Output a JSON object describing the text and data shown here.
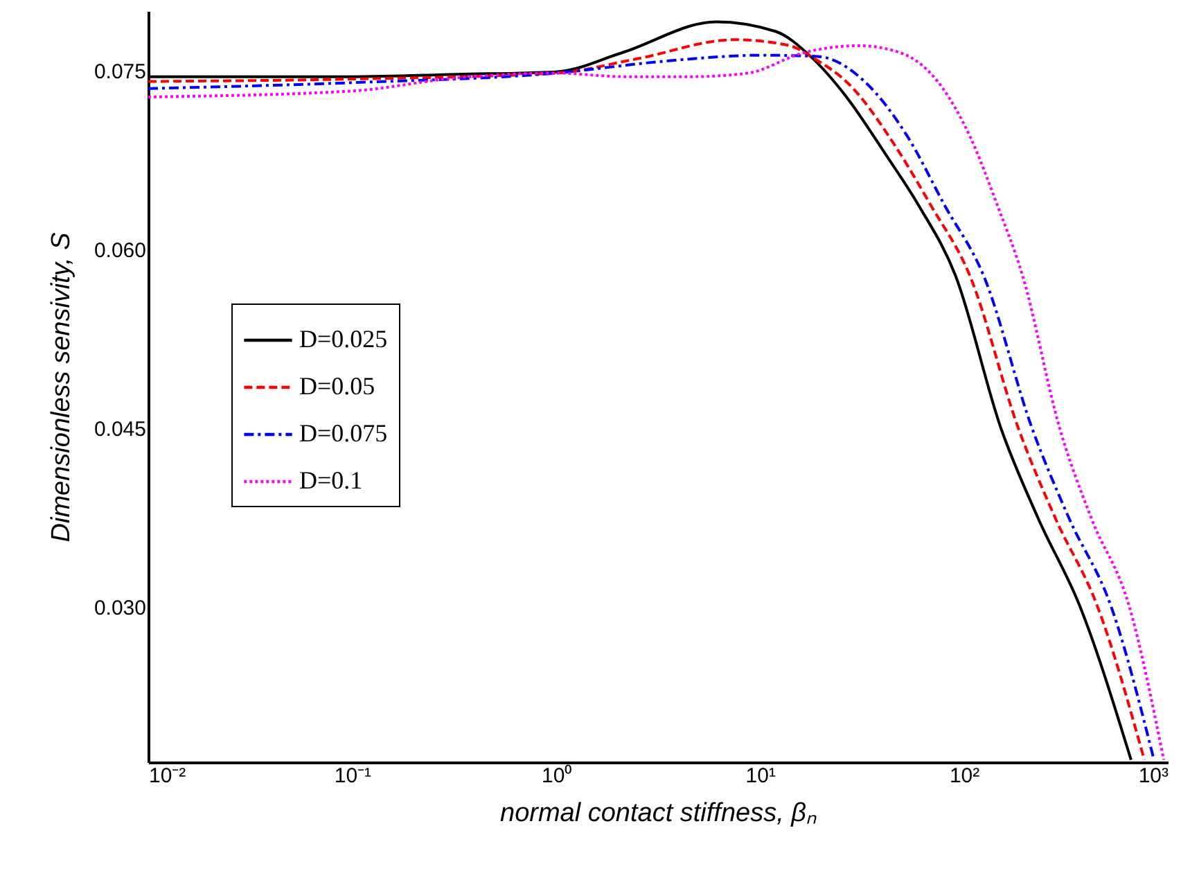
{
  "chart_data": {
    "type": "line",
    "xlabel": "normal contact stiffness, βₙ",
    "ylabel": "Dimensionless sensivity, S",
    "log": "x",
    "grid": false,
    "legend": "left",
    "marker": "none",
    "xlim": [
      0.01,
      1000
    ],
    "xticks": [
      {
        "value": 0.01,
        "label": "10⁻²"
      },
      {
        "value": 0.1,
        "label": "10⁻¹"
      },
      {
        "value": 1,
        "label": "10⁰"
      },
      {
        "value": 10,
        "label": "10¹"
      },
      {
        "value": 100,
        "label": "10²"
      },
      {
        "value": 1000,
        "label": "10³"
      }
    ],
    "ylim": [
      0.017,
      0.08
    ],
    "yticks": [
      {
        "value": 0.03,
        "label": "0.030"
      },
      0.045,
      {
        "value": 0.06,
        "label": "0.060"
      },
      0.075
    ],
    "series": [
      {
        "name": "D=0.025",
        "color": "#000000",
        "line_style": "solid",
        "x": [
          0.01,
          0.1,
          0.327,
          1.0,
          2.1,
          6.1,
          11.9,
          17.7,
          26,
          42,
          60,
          91,
          152,
          232,
          370,
          660
        ],
        "values": [
          0.0745,
          0.0745,
          0.0747,
          0.0749,
          0.0765,
          0.0791,
          0.0783,
          0.0762,
          0.073,
          0.0678,
          0.0637,
          0.0578,
          0.045,
          0.0374,
          0.0301,
          0.0172
        ]
      },
      {
        "name": "D=0.05",
        "color": "#ff0000",
        "line_style": "dashed",
        "x": [
          0.01,
          0.1,
          1.0,
          2.5,
          7.48,
          14.0,
          17.7,
          28.3,
          45.2,
          68.9,
          107,
          185,
          282,
          451,
          767
        ],
        "values": [
          0.0741,
          0.0743,
          0.0748,
          0.076,
          0.0776,
          0.0771,
          0.0762,
          0.0736,
          0.0689,
          0.0637,
          0.0578,
          0.045,
          0.0374,
          0.0301,
          0.0172
        ]
      },
      {
        "name": "D=0.075",
        "color": "#0000ff",
        "line_style": "dashdot",
        "x": [
          0.01,
          0.1,
          1.0,
          3.42,
          10.2,
          19.1,
          33.0,
          52.8,
          80.5,
          125,
          216,
          329,
          526,
          855
        ],
        "values": [
          0.0735,
          0.074,
          0.0748,
          0.0758,
          0.0763,
          0.0762,
          0.074,
          0.0695,
          0.0637,
          0.0578,
          0.045,
          0.0374,
          0.0301,
          0.0172
        ]
      },
      {
        "name": "D=0.1",
        "color": "#ff00ff",
        "line_style": "dotted",
        "x": [
          0.01,
          0.1,
          0.327,
          1.0,
          2.14,
          4.68,
          8.75,
          16.3,
          30.5,
          48.9,
          78.2,
          107,
          146,
          194,
          295,
          423,
          646,
          955
        ],
        "values": [
          0.0728,
          0.0733,
          0.0744,
          0.0748,
          0.0745,
          0.0745,
          0.0748,
          0.0765,
          0.0771,
          0.0765,
          0.0736,
          0.0695,
          0.0637,
          0.0578,
          0.045,
          0.0374,
          0.0301,
          0.0172
        ]
      }
    ]
  }
}
